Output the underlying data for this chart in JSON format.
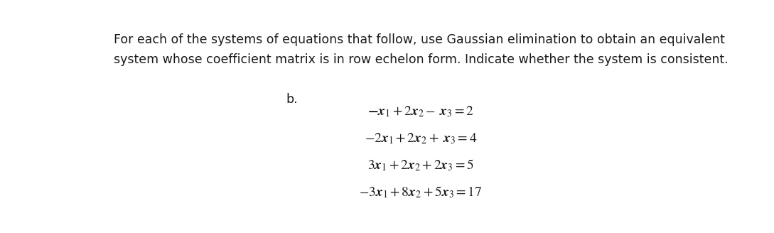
{
  "background_color": "#ffffff",
  "header_line1": "For each of the systems of equations that follow, use Gaussian elimination to obtain an equivalent",
  "header_line2": "system whose coefficient matrix is in row echelon form. Indicate whether the system is consistent.",
  "header_fontsize": 12.5,
  "header_color": "#1a1a1a",
  "label_b_text": "b.",
  "label_b_fontsize": 12.5,
  "equations": [
    "$\\mathbf{-}\\boldsymbol{x}_1 + 2\\boldsymbol{x}_2 -\\; \\boldsymbol{x}_3 = 2$",
    "$-2\\boldsymbol{x}_1 + 2\\boldsymbol{x}_2 + \\; \\boldsymbol{x}_3 = 4$",
    "$3\\boldsymbol{x}_1 + 2\\boldsymbol{x}_2 + 2\\boldsymbol{x}_3 = 5$",
    "$-3\\boldsymbol{x}_1 + 8\\boldsymbol{x}_2 + 5\\boldsymbol{x}_3 = 17$"
  ],
  "eq_fontsize": 14.0,
  "eq_color": "#1a1a1a",
  "figsize": [
    10.89,
    3.28
  ],
  "dpi": 100
}
